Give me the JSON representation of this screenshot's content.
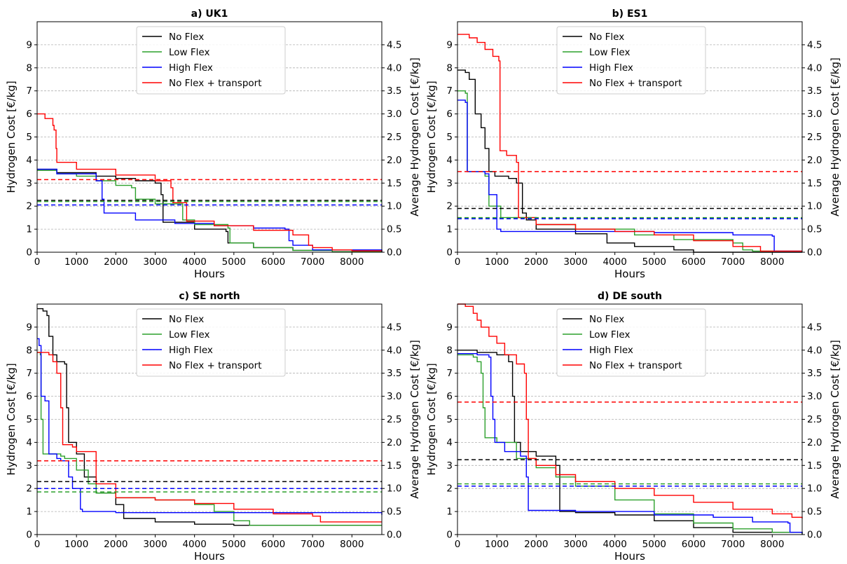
{
  "chart_data": [
    {
      "type": "line",
      "title": "a) UK1",
      "xlabel": "Hours",
      "ylabel": "Hydrogen Cost [€/kg]",
      "y2label": "Average Hydrogen Cost [€/kg]",
      "xlim": [
        0,
        8760
      ],
      "ylim": [
        0,
        10
      ],
      "y2lim": [
        0,
        5
      ],
      "xticks": [
        "0",
        "1000",
        "2000",
        "3000",
        "4000",
        "5000",
        "6000",
        "7000",
        "8000"
      ],
      "yticks": [
        "0",
        "1",
        "2",
        "3",
        "4",
        "5",
        "6",
        "7",
        "8",
        "9"
      ],
      "y2ticks": [
        "0.0",
        "0.5",
        "1.0",
        "1.5",
        "2.0",
        "2.5",
        "3.0",
        "3.5",
        "4.0",
        "4.5"
      ],
      "grid": "horizontal dashed",
      "legend": "top-center",
      "series": [
        {
          "name": "No Flex",
          "color": "#000000",
          "avg": 2.25,
          "x": [
            0,
            500,
            1500,
            2000,
            2500,
            3000,
            3150,
            3200,
            4000,
            4800,
            4850,
            5500,
            6500,
            7500,
            8760
          ],
          "y": [
            3.6,
            3.45,
            3.3,
            3.2,
            3.1,
            3.0,
            2.5,
            1.3,
            1.0,
            0.9,
            0.4,
            0.2,
            0.08,
            0.02,
            0.0
          ]
        },
        {
          "name": "Low Flex",
          "color": "#2ca02c",
          "avg": 2.2,
          "x": [
            0,
            500,
            1000,
            1500,
            2000,
            2400,
            2500,
            3000,
            3700,
            4000,
            4850,
            4900,
            5500,
            6500,
            7500,
            8760
          ],
          "y": [
            3.55,
            3.4,
            3.3,
            3.1,
            2.9,
            2.8,
            2.3,
            2.1,
            1.4,
            1.2,
            1.05,
            0.4,
            0.2,
            0.08,
            0.02,
            0.0
          ]
        },
        {
          "name": "High Flex",
          "color": "#0000ff",
          "avg": 2.05,
          "x": [
            0,
            500,
            1500,
            1650,
            1700,
            2500,
            3500,
            4500,
            5500,
            6300,
            6400,
            6500,
            7000,
            8760
          ],
          "y": [
            3.6,
            3.4,
            3.1,
            2.3,
            1.7,
            1.4,
            1.25,
            1.15,
            1.05,
            1.0,
            0.5,
            0.3,
            0.1,
            0.0
          ]
        },
        {
          "name": "No Flex + transport",
          "color": "#ff0000",
          "avg": 3.15,
          "x": [
            0,
            200,
            400,
            430,
            480,
            500,
            1000,
            2000,
            3000,
            3400,
            3450,
            3800,
            4500,
            5500,
            6500,
            6900,
            7000,
            7500,
            8000,
            8760
          ],
          "y": [
            6.0,
            5.8,
            5.5,
            5.3,
            4.5,
            3.9,
            3.6,
            3.35,
            3.1,
            2.8,
            2.15,
            1.35,
            1.15,
            0.95,
            0.75,
            0.3,
            0.2,
            0.1,
            0.06,
            0.05
          ]
        }
      ]
    },
    {
      "type": "line",
      "title": "b) ES1",
      "xlabel": "Hours",
      "ylabel": "Hydrogen Cost [€/kg]",
      "y2label": "Average Hydrogen Cost [€/kg]",
      "xlim": [
        0,
        8760
      ],
      "ylim": [
        0,
        10
      ],
      "y2lim": [
        0,
        5
      ],
      "xticks": [
        "0",
        "1000",
        "2000",
        "3000",
        "4000",
        "5000",
        "6000",
        "7000",
        "8000"
      ],
      "yticks": [
        "0",
        "1",
        "2",
        "3",
        "4",
        "5",
        "6",
        "7",
        "8",
        "9"
      ],
      "y2ticks": [
        "0.0",
        "0.5",
        "1.0",
        "1.5",
        "2.0",
        "2.5",
        "3.0",
        "3.5",
        "4.0",
        "4.5"
      ],
      "grid": "horizontal dashed",
      "legend": "top-center",
      "series": [
        {
          "name": "No Flex",
          "color": "#000000",
          "avg": 1.9,
          "x": [
            0,
            200,
            300,
            450,
            600,
            700,
            800,
            950,
            1300,
            1500,
            1650,
            1750,
            2000,
            3000,
            3800,
            4500,
            5500,
            6000,
            8760
          ],
          "y": [
            7.9,
            7.8,
            7.5,
            6.0,
            5.4,
            4.5,
            3.5,
            3.3,
            3.2,
            3.0,
            1.7,
            1.4,
            1.0,
            0.8,
            0.4,
            0.25,
            0.1,
            0.0,
            0.0
          ]
        },
        {
          "name": "Low Flex",
          "color": "#2ca02c",
          "avg": 1.5,
          "x": [
            0,
            200,
            250,
            700,
            800,
            1100,
            2000,
            3000,
            4500,
            5500,
            7000,
            7250,
            7500,
            8760
          ],
          "y": [
            7.0,
            6.9,
            3.5,
            3.3,
            2.0,
            1.5,
            1.2,
            1.0,
            0.75,
            0.55,
            0.4,
            0.1,
            0.05,
            0.05
          ]
        },
        {
          "name": "High Flex",
          "color": "#0000ff",
          "avg": 1.45,
          "x": [
            0,
            200,
            250,
            700,
            800,
            1000,
            1100,
            2000,
            5000,
            7000,
            8000,
            8050,
            8760
          ],
          "y": [
            6.6,
            6.5,
            3.5,
            3.4,
            2.5,
            1.0,
            0.9,
            0.9,
            0.85,
            0.75,
            0.7,
            0.05,
            0.05
          ]
        },
        {
          "name": "No Flex + transport",
          "color": "#ff0000",
          "avg": 3.5,
          "x": [
            0,
            300,
            500,
            700,
            900,
            1050,
            1080,
            1250,
            1500,
            1550,
            2000,
            3000,
            4000,
            5000,
            6000,
            7000,
            7700,
            8760
          ],
          "y": [
            9.45,
            9.3,
            9.1,
            8.8,
            8.5,
            8.3,
            4.4,
            4.2,
            3.9,
            1.5,
            1.2,
            1.0,
            0.9,
            0.75,
            0.5,
            0.25,
            0.05,
            0.05
          ]
        }
      ]
    },
    {
      "type": "line",
      "title": "c) SE north",
      "xlabel": "Hours",
      "ylabel": "Hydrogen Cost [€/kg]",
      "y2label": "Average Hydrogen Cost [€/kg]",
      "xlim": [
        0,
        8760
      ],
      "ylim": [
        0,
        10
      ],
      "y2lim": [
        0,
        5
      ],
      "xticks": [
        "0",
        "1000",
        "2000",
        "3000",
        "4000",
        "5000",
        "6000",
        "7000",
        "8000"
      ],
      "yticks": [
        "0",
        "1",
        "2",
        "3",
        "4",
        "5",
        "6",
        "7",
        "8",
        "9"
      ],
      "y2ticks": [
        "0.0",
        "0.5",
        "1.0",
        "1.5",
        "2.0",
        "2.5",
        "3.0",
        "3.5",
        "4.0",
        "4.5"
      ],
      "grid": "horizontal dashed",
      "legend": "top-center",
      "series": [
        {
          "name": "No Flex",
          "color": "#000000",
          "avg": 2.3,
          "x": [
            0,
            150,
            250,
            300,
            400,
            500,
            700,
            750,
            800,
            1000,
            1200,
            1500,
            2000,
            2200,
            3000,
            4000,
            5000,
            8760
          ],
          "y": [
            9.8,
            9.7,
            9.5,
            8.6,
            7.8,
            7.5,
            7.4,
            5.5,
            4.0,
            3.5,
            2.5,
            1.8,
            1.3,
            0.7,
            0.55,
            0.45,
            0.4,
            0.4
          ]
        },
        {
          "name": "Low Flex",
          "color": "#2ca02c",
          "avg": 1.85,
          "x": [
            0,
            80,
            100,
            150,
            600,
            700,
            1000,
            1300,
            1500,
            2000,
            3000,
            4000,
            4500,
            5000,
            5400,
            8760
          ],
          "y": [
            7.9,
            7.8,
            5.0,
            3.5,
            3.4,
            3.3,
            2.8,
            2.2,
            1.8,
            1.6,
            1.5,
            1.3,
            1.0,
            0.6,
            0.4,
            0.4
          ]
        },
        {
          "name": "High Flex",
          "color": "#0000ff",
          "avg": 2.0,
          "x": [
            0,
            50,
            100,
            200,
            300,
            500,
            600,
            800,
            900,
            1100,
            1150,
            2000,
            8760
          ],
          "y": [
            8.5,
            8.2,
            6.0,
            5.8,
            3.5,
            3.3,
            3.2,
            2.5,
            2.0,
            1.1,
            1.0,
            0.95,
            0.85
          ]
        },
        {
          "name": "No Flex + transport",
          "color": "#ff0000",
          "avg": 3.2,
          "x": [
            0,
            300,
            400,
            500,
            600,
            650,
            900,
            1000,
            1500,
            2000,
            3000,
            4000,
            5000,
            6000,
            7000,
            7200,
            8760
          ],
          "y": [
            7.9,
            7.8,
            7.5,
            7.0,
            5.5,
            3.9,
            3.8,
            3.6,
            2.2,
            1.6,
            1.5,
            1.35,
            1.1,
            0.9,
            0.8,
            0.55,
            0.55
          ]
        }
      ]
    },
    {
      "type": "line",
      "title": "d) DE south",
      "xlabel": "Hours",
      "ylabel": "Hydrogen Cost [€/kg]",
      "y2label": "Average Hydrogen Cost [€/kg]",
      "xlim": [
        0,
        8760
      ],
      "ylim": [
        0,
        10
      ],
      "y2lim": [
        0,
        5
      ],
      "xticks": [
        "0",
        "1000",
        "2000",
        "3000",
        "4000",
        "5000",
        "6000",
        "7000",
        "8000"
      ],
      "yticks": [
        "0",
        "1",
        "2",
        "3",
        "4",
        "5",
        "6",
        "7",
        "8",
        "9"
      ],
      "y2ticks": [
        "0.0",
        "0.5",
        "1.0",
        "1.5",
        "2.0",
        "2.5",
        "3.0",
        "3.5",
        "4.0",
        "4.5"
      ],
      "grid": "horizontal dashed",
      "legend": "top-center",
      "series": [
        {
          "name": "No Flex",
          "color": "#000000",
          "avg": 3.25,
          "x": [
            0,
            500,
            1000,
            1300,
            1400,
            1450,
            1600,
            2000,
            2500,
            2600,
            3000,
            4000,
            5000,
            6000,
            7000,
            8760
          ],
          "y": [
            8.0,
            7.9,
            7.8,
            7.5,
            6.0,
            4.0,
            3.6,
            3.4,
            3.0,
            1.0,
            0.95,
            0.85,
            0.6,
            0.3,
            0.1,
            0.0
          ]
        },
        {
          "name": "Low Flex",
          "color": "#2ca02c",
          "avg": 2.2,
          "x": [
            0,
            400,
            500,
            600,
            650,
            700,
            1000,
            1500,
            2000,
            2500,
            3000,
            4000,
            5000,
            6000,
            7000,
            8000,
            8760
          ],
          "y": [
            7.8,
            7.7,
            7.5,
            7.0,
            5.5,
            4.2,
            4.0,
            3.3,
            2.9,
            2.5,
            2.1,
            1.5,
            0.9,
            0.5,
            0.25,
            0.1,
            0.05
          ]
        },
        {
          "name": "High Flex",
          "color": "#0000ff",
          "avg": 2.1,
          "x": [
            0,
            500,
            800,
            850,
            900,
            950,
            1200,
            1600,
            1750,
            1800,
            3000,
            5000,
            6500,
            7500,
            8400,
            8450,
            8760
          ],
          "y": [
            7.85,
            7.8,
            7.7,
            6.0,
            5.0,
            4.0,
            3.6,
            3.4,
            2.5,
            1.05,
            1.0,
            0.85,
            0.75,
            0.55,
            0.5,
            0.1,
            0.05
          ]
        },
        {
          "name": "No Flex + transport",
          "color": "#ff0000",
          "avg": 5.75,
          "x": [
            0,
            200,
            400,
            500,
            600,
            800,
            1000,
            1200,
            1500,
            1700,
            1750,
            1800,
            2000,
            2500,
            3000,
            4000,
            5000,
            6000,
            7000,
            8000,
            8500,
            8760
          ],
          "y": [
            10.0,
            9.9,
            9.6,
            9.3,
            9.0,
            8.6,
            8.3,
            7.8,
            7.4,
            7.0,
            5.0,
            3.3,
            3.0,
            2.6,
            2.3,
            2.0,
            1.7,
            1.4,
            1.1,
            0.9,
            0.75,
            0.7
          ]
        }
      ]
    }
  ]
}
